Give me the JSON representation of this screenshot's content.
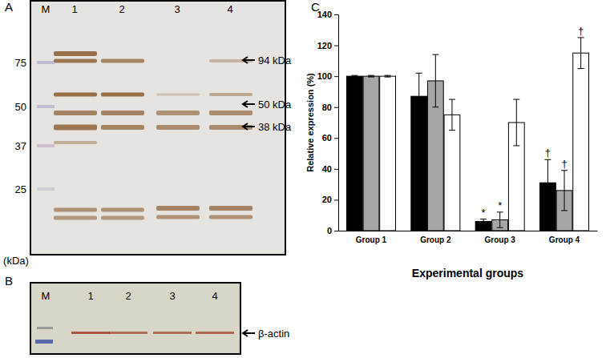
{
  "chart_data": {
    "type": "bar",
    "panel_label": "C",
    "x_label": "Experimental groups",
    "y_label": "Relative expression (%)",
    "categories": [
      "Group 1",
      "Group 2",
      "Group 3",
      "Group 4"
    ],
    "series": [
      {
        "color": "#000000",
        "values": [
          100,
          87,
          6,
          31
        ],
        "errors": [
          0.5,
          15,
          1.5,
          15
        ]
      },
      {
        "color": "#a6a6a6",
        "values": [
          100,
          97,
          7,
          26
        ],
        "errors": [
          0.5,
          17,
          5,
          13
        ]
      },
      {
        "color": "#ffffff",
        "values": [
          100,
          75,
          70,
          115
        ],
        "errors": [
          0.5,
          10,
          15,
          10
        ]
      }
    ],
    "ylim": [
      0,
      140
    ],
    "yticks": [
      0,
      20,
      40,
      60,
      80,
      100,
      120,
      140
    ],
    "grid": false,
    "annotations": [
      {
        "text": "*",
        "series": 0,
        "category": 2
      },
      {
        "text": "*",
        "series": 1,
        "category": 2
      },
      {
        "text": "†",
        "series": 0,
        "category": 3
      },
      {
        "text": "†",
        "series": 1,
        "category": 3
      },
      {
        "text": "†",
        "series": 2,
        "category": 3
      }
    ]
  },
  "blot_a": {
    "label": "A",
    "lanes": [
      "M",
      "1",
      "2",
      "3",
      "4"
    ],
    "size_marker_labels": [
      75,
      50,
      37,
      25
    ],
    "unit_label": "(kDa)",
    "band_labels": [
      "94 kDa",
      "50 kDa",
      "38 kDa"
    ]
  },
  "blot_b": {
    "label": "B",
    "lanes": [
      "M",
      "1",
      "2",
      "3",
      "4"
    ],
    "band_label": "β-actin"
  }
}
